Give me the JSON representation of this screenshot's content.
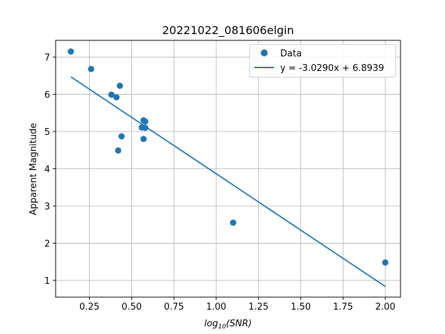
{
  "chart_data": {
    "type": "scatter",
    "title": "20221022_081606elgin",
    "xlabel": "log10(SNR)",
    "ylabel": "Apparent Magnitude",
    "xlim": [
      0.05,
      2.09
    ],
    "ylim": [
      0.55,
      7.45
    ],
    "xticks": [
      0.25,
      0.5,
      0.75,
      1.0,
      1.25,
      1.5,
      1.75,
      2.0
    ],
    "xtick_labels": [
      "0.25",
      "0.50",
      "0.75",
      "1.00",
      "1.25",
      "1.50",
      "1.75",
      "2.00"
    ],
    "yticks": [
      1,
      2,
      3,
      4,
      5,
      6,
      7
    ],
    "ytick_labels": [
      "1",
      "2",
      "3",
      "4",
      "5",
      "6",
      "7"
    ],
    "grid": true,
    "legend_position": "top-right",
    "color": "#1f77b4",
    "series": [
      {
        "name": "Data",
        "kind": "scatter",
        "points": [
          {
            "x": 0.14,
            "y": 7.15
          },
          {
            "x": 0.26,
            "y": 6.68
          },
          {
            "x": 0.38,
            "y": 5.99
          },
          {
            "x": 0.41,
            "y": 5.92
          },
          {
            "x": 0.43,
            "y": 6.23
          },
          {
            "x": 0.42,
            "y": 4.49
          },
          {
            "x": 0.44,
            "y": 4.87
          },
          {
            "x": 0.56,
            "y": 5.11
          },
          {
            "x": 0.57,
            "y": 5.3
          },
          {
            "x": 0.58,
            "y": 5.27
          },
          {
            "x": 0.58,
            "y": 5.1
          },
          {
            "x": 0.57,
            "y": 4.8
          },
          {
            "x": 1.1,
            "y": 2.55
          },
          {
            "x": 2.0,
            "y": 1.48
          }
        ]
      },
      {
        "name": "y = -3.0290x + 6.8939",
        "kind": "line",
        "slope": -3.029,
        "intercept": 6.8939,
        "x_range": [
          0.14,
          2.0
        ]
      }
    ]
  }
}
